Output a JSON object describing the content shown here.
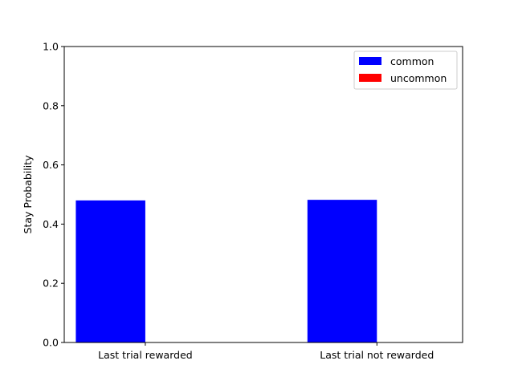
{
  "chart_data": {
    "type": "bar",
    "title": "",
    "xlabel": "",
    "ylabel": "Stay Probability",
    "ylim": [
      0,
      1.0
    ],
    "yticks": [
      "0.0",
      "0.2",
      "0.4",
      "0.6",
      "0.8",
      "1.0"
    ],
    "categories": [
      "Last trial rewarded",
      "Last trial not rewarded"
    ],
    "series": [
      {
        "name": "common",
        "color": "#0000ff",
        "values": [
          0.48,
          0.482
        ]
      },
      {
        "name": "uncommon",
        "color": "#ff0000",
        "values": [
          0,
          0
        ]
      }
    ],
    "legend": "top-right",
    "grid": false
  }
}
